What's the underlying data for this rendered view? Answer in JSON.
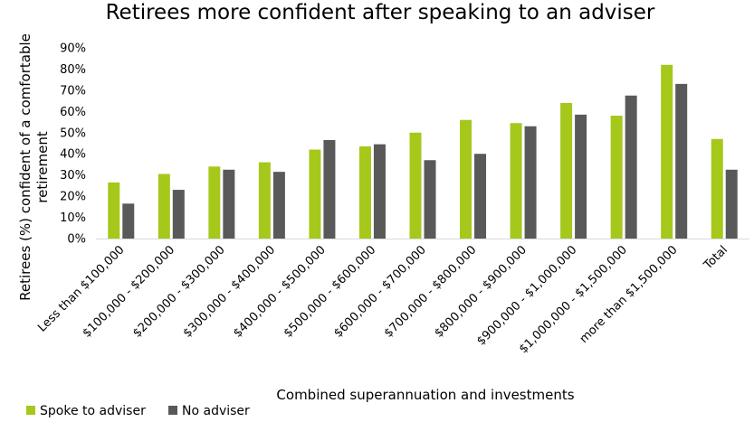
{
  "chart_data": {
    "type": "bar",
    "title": "Retirees more confident after speaking to an adviser",
    "xlabel": "Combined superannuation and investments",
    "ylabel": "Retirees (%) confident of a comfortable retirement",
    "ylim": [
      0,
      90
    ],
    "yticks": [
      "0%",
      "10%",
      "20%",
      "30%",
      "40%",
      "50%",
      "60%",
      "70%",
      "80%",
      "90%"
    ],
    "grid": false,
    "legend_position": "bottom-left",
    "categories": [
      "Less than $100,000",
      "$100,000 - $200,000",
      "$200,000 - $300,000",
      "$300,000 - $400,000",
      "$400,000 - $500,000",
      "$500,000 - $600,000",
      "$600,000 - $700,000",
      "$700,000 - $800,000",
      "$800,000 - $900,000",
      "$900,000 - $1,000,000",
      "$1,000,000 - $1,500,000",
      "more than $1,500,000",
      "Total"
    ],
    "series": [
      {
        "name": "Spoke to adviser",
        "color": "#a5c81b",
        "values": [
          26.5,
          30.5,
          34,
          36,
          42,
          43.5,
          50,
          56,
          54.5,
          64,
          58,
          82,
          47
        ]
      },
      {
        "name": "No adviser",
        "color": "#595959",
        "values": [
          16.5,
          23,
          32.5,
          31.5,
          46.5,
          44.5,
          37,
          40,
          53,
          58.5,
          67.5,
          73,
          32.5
        ]
      }
    ]
  }
}
